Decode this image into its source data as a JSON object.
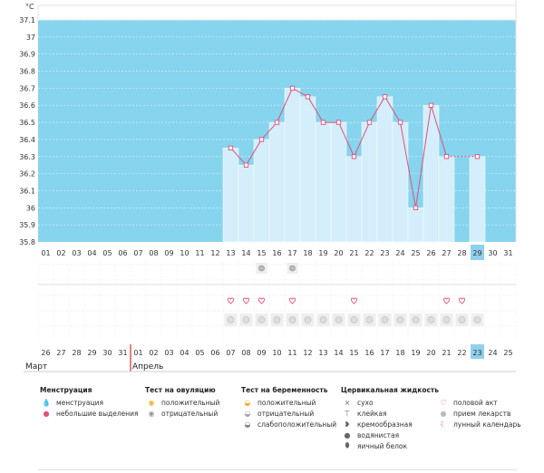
{
  "unit": "°C",
  "chart_data": {
    "type": "bar",
    "title": "",
    "ylabel": "°C",
    "ylim": [
      35.8,
      37.1
    ],
    "yticks": [
      "35.8",
      "35.9",
      "36",
      "36.1",
      "36.2",
      "36.3",
      "36.4",
      "36.5",
      "36.6",
      "36.7",
      "36.8",
      "36.9",
      "37",
      "37.1"
    ],
    "cycle_days": [
      "01",
      "02",
      "03",
      "04",
      "05",
      "06",
      "07",
      "08",
      "09",
      "10",
      "11",
      "12",
      "13",
      "14",
      "15",
      "16",
      "17",
      "18",
      "19",
      "20",
      "21",
      "22",
      "23",
      "24",
      "25",
      "26",
      "27",
      "28",
      "29",
      "30",
      "31"
    ],
    "values": [
      null,
      null,
      null,
      null,
      null,
      null,
      null,
      null,
      null,
      null,
      null,
      null,
      36.35,
      36.25,
      36.4,
      36.5,
      36.7,
      36.65,
      36.5,
      36.5,
      36.3,
      36.5,
      36.65,
      36.5,
      36.0,
      36.6,
      36.3,
      null,
      36.3,
      null,
      null
    ],
    "highlight_day": "29",
    "calendar_dates": [
      "26",
      "27",
      "28",
      "29",
      "30",
      "31",
      "01",
      "02",
      "03",
      "04",
      "05",
      "06",
      "07",
      "08",
      "09",
      "10",
      "11",
      "12",
      "13",
      "14",
      "15",
      "16",
      "17",
      "18",
      "19",
      "20",
      "21",
      "22",
      "23",
      "24",
      "25"
    ],
    "red_dates_index": [
      5,
      12,
      13,
      19,
      20,
      26,
      27
    ],
    "highlight_date": "23",
    "ovulation_negative_index": [
      14,
      16
    ],
    "intercourse_index": [
      12,
      13,
      14,
      16,
      20,
      26,
      27
    ],
    "moon_index": [
      12,
      13,
      14,
      15,
      16,
      17,
      18,
      19,
      20,
      21,
      22,
      23,
      24,
      25,
      26,
      27,
      28
    ]
  },
  "months": {
    "march": "Март",
    "april": "Апрель"
  },
  "legend": {
    "menstruation": {
      "title": "Менструация",
      "items": [
        "менструация",
        "небольшие выделения"
      ]
    },
    "ovulation": {
      "title": "Тест на овуляцию",
      "items": [
        "положительный",
        "отрицательный"
      ]
    },
    "pregnancy": {
      "title": "Тест на беременность",
      "items": [
        "положительный",
        "отрицательный",
        "слабоположительный"
      ]
    },
    "cervical": {
      "title": "Цервикальная жидкость",
      "items": [
        "сухо",
        "клейкая",
        "кремообразная",
        "водянистая",
        "яичный белок"
      ]
    },
    "other": {
      "items": [
        "половой акт",
        "прием лекарств",
        "лунный календарь"
      ]
    }
  },
  "colors": {
    "bg_band": "#87d4ee",
    "bar": "#d4eefb",
    "line": "#e0507a",
    "highlight": "#8fd0ee",
    "red": "#d6003a"
  }
}
